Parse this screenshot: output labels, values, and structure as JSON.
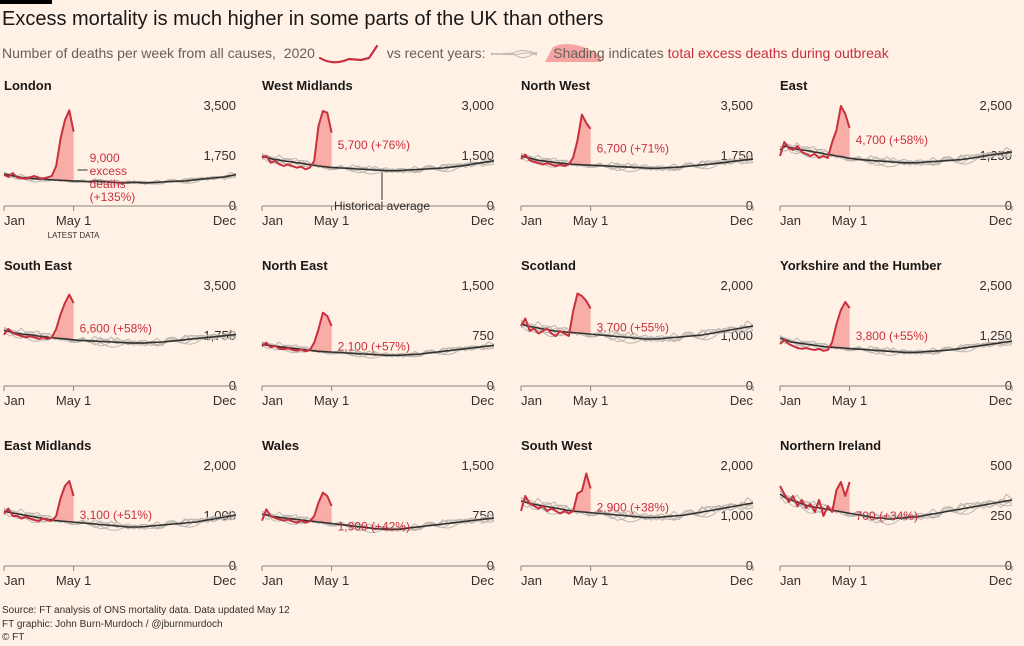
{
  "title": "Excess mortality is much higher in some parts of the UK than others",
  "subtitle": {
    "part1": "Number of deaths per week from all causes,",
    "year_label": "2020",
    "part2": "vs recent years:",
    "shading_label": "Shading",
    "part3": "indicates",
    "excess_label": "total excess deaths during outbreak"
  },
  "colors": {
    "background": "#fff1e5",
    "line_2020": "#c9303e",
    "shade": "#f7a5a0",
    "average": "#33302e",
    "history": "#bdb7b1",
    "text": "#33302e"
  },
  "annotations": {
    "latest_data": "LATEST DATA",
    "historical_average": "Historical average",
    "excess_deaths_line2": "excess",
    "excess_deaths_line3": "deaths"
  },
  "footer": {
    "source": "Source: FT analysis of ONS mortality data. Data updated May 12",
    "credit": "FT graphic: John Burn-Murdoch / @jburnmurdoch",
    "copyright": "© FT"
  },
  "chart_data": [
    {
      "type": "line",
      "title": "London",
      "x_ticks": [
        "Jan",
        "May 1",
        "Dec"
      ],
      "y_ticks": [
        "3,500",
        "1,750",
        "0"
      ],
      "ylim": [
        0,
        3500
      ],
      "label": "9,000",
      "label_pct": "(+135%)",
      "series_2020": [
        1100,
        1020,
        1150,
        1000,
        980,
        950,
        1000,
        1050,
        980,
        960,
        1000,
        1050,
        1400,
        2350,
        3000,
        3350,
        2600
      ],
      "average": [
        1120,
        1080,
        1040,
        1000,
        980,
        960,
        950,
        940,
        920,
        910,
        900,
        890,
        880,
        870,
        860,
        850,
        870,
        860,
        850,
        830,
        820,
        810,
        820,
        830,
        820,
        810,
        820,
        830,
        840,
        850,
        860,
        870,
        880,
        900,
        920,
        940,
        960,
        980,
        1000,
        1020,
        1060,
        1100
      ]
    },
    {
      "type": "line",
      "title": "West Midlands",
      "x_ticks": [
        "Jan",
        "May 1",
        "Dec"
      ],
      "y_ticks": [
        "3,000",
        "1,500",
        "0"
      ],
      "ylim": [
        0,
        3000
      ],
      "label": "5,700",
      "label_pct": "(+76%)",
      "series_2020": [
        1450,
        1500,
        1300,
        1350,
        1250,
        1200,
        1250,
        1200,
        1150,
        1180,
        1100,
        1150,
        1350,
        2400,
        2850,
        2800,
        2200
      ],
      "average": [
        1500,
        1450,
        1400,
        1380,
        1350,
        1330,
        1300,
        1280,
        1250,
        1230,
        1200,
        1180,
        1160,
        1150,
        1140,
        1130,
        1120,
        1110,
        1100,
        1090,
        1080,
        1070,
        1060,
        1060,
        1060,
        1070,
        1080,
        1090,
        1100,
        1110,
        1120,
        1130,
        1140,
        1160,
        1180,
        1200,
        1220,
        1250,
        1280,
        1300,
        1330,
        1360
      ]
    },
    {
      "type": "line",
      "title": "North West",
      "x_ticks": [
        "Jan",
        "May 1",
        "Dec"
      ],
      "y_ticks": [
        "3,500",
        "1,750",
        "0"
      ],
      "ylim": [
        0,
        3500
      ],
      "label": "6,700",
      "label_pct": "(+71%)",
      "series_2020": [
        1650,
        1800,
        1600,
        1550,
        1500,
        1450,
        1500,
        1450,
        1400,
        1450,
        1400,
        1450,
        1700,
        2300,
        3200,
        2900,
        2700
      ],
      "average": [
        1750,
        1700,
        1650,
        1600,
        1580,
        1550,
        1520,
        1500,
        1480,
        1460,
        1450,
        1440,
        1430,
        1420,
        1410,
        1400,
        1390,
        1380,
        1370,
        1360,
        1350,
        1340,
        1330,
        1320,
        1320,
        1330,
        1340,
        1350,
        1360,
        1380,
        1400,
        1420,
        1440,
        1460,
        1480,
        1500,
        1520,
        1550,
        1580,
        1600,
        1620,
        1650
      ]
    },
    {
      "type": "line",
      "title": "East",
      "x_ticks": [
        "Jan",
        "May 1",
        "Dec"
      ],
      "y_ticks": [
        "2,500",
        "1,250",
        "0"
      ],
      "ylim": [
        0,
        2500
      ],
      "label": "4,700",
      "label_pct": "(+58%)",
      "series_2020": [
        1250,
        1600,
        1450,
        1400,
        1500,
        1350,
        1300,
        1250,
        1300,
        1200,
        1250,
        1200,
        1600,
        1900,
        2500,
        2300,
        1950
      ],
      "average": [
        1400,
        1500,
        1450,
        1420,
        1400,
        1380,
        1350,
        1330,
        1300,
        1280,
        1250,
        1230,
        1200,
        1180,
        1160,
        1150,
        1140,
        1130,
        1120,
        1110,
        1100,
        1090,
        1080,
        1080,
        1080,
        1090,
        1100,
        1110,
        1120,
        1130,
        1140,
        1150,
        1160,
        1180,
        1200,
        1220,
        1250,
        1270,
        1290,
        1310,
        1330,
        1350
      ]
    },
    {
      "type": "line",
      "title": "South East",
      "x_ticks": [
        "Jan",
        "May 1",
        "Dec"
      ],
      "y_ticks": [
        "3,500",
        "1,750",
        "0"
      ],
      "ylim": [
        0,
        3500
      ],
      "label": "6,600",
      "label_pct": "(+58%)",
      "series_2020": [
        1800,
        2000,
        1850,
        1800,
        1750,
        1700,
        1750,
        1700,
        1650,
        1700,
        1650,
        1700,
        2000,
        2500,
        2900,
        3200,
        2900
      ],
      "average": [
        1950,
        1900,
        1850,
        1820,
        1800,
        1780,
        1750,
        1730,
        1700,
        1680,
        1660,
        1640,
        1620,
        1600,
        1590,
        1580,
        1570,
        1560,
        1550,
        1540,
        1530,
        1520,
        1510,
        1500,
        1500,
        1510,
        1520,
        1530,
        1540,
        1560,
        1580,
        1600,
        1620,
        1640,
        1660,
        1680,
        1700,
        1720,
        1740,
        1760,
        1780,
        1800
      ]
    },
    {
      "type": "line",
      "title": "North East",
      "x_ticks": [
        "Jan",
        "May 1",
        "Dec"
      ],
      "y_ticks": [
        "1,500",
        "750",
        "0"
      ],
      "ylim": [
        0,
        1500
      ],
      "label": "2,100",
      "label_pct": "(+57%)",
      "series_2020": [
        600,
        650,
        580,
        600,
        560,
        550,
        570,
        540,
        530,
        550,
        520,
        540,
        650,
        850,
        1100,
        1050,
        900
      ],
      "average": [
        630,
        610,
        600,
        590,
        580,
        570,
        560,
        550,
        540,
        530,
        520,
        515,
        510,
        505,
        500,
        495,
        490,
        485,
        480,
        475,
        470,
        465,
        460,
        460,
        460,
        465,
        470,
        475,
        480,
        490,
        500,
        510,
        520,
        530,
        540,
        550,
        560,
        570,
        580,
        590,
        600,
        610
      ]
    },
    {
      "type": "line",
      "title": "Scotland",
      "x_ticks": [
        "Jan",
        "May 1",
        "Dec"
      ],
      "y_ticks": [
        "2,000",
        "1,000",
        "0"
      ],
      "ylim": [
        0,
        2000
      ],
      "label": "3,700",
      "label_pct": "(+55%)",
      "series_2020": [
        1200,
        1350,
        1100,
        1150,
        1050,
        1100,
        1150,
        1050,
        1000,
        1100,
        1050,
        1000,
        1500,
        1850,
        1800,
        1700,
        1550
      ],
      "average": [
        1250,
        1200,
        1180,
        1160,
        1140,
        1120,
        1100,
        1090,
        1080,
        1070,
        1060,
        1050,
        1040,
        1030,
        1020,
        1010,
        1000,
        990,
        980,
        970,
        960,
        950,
        940,
        940,
        940,
        950,
        960,
        970,
        980,
        990,
        1000,
        1010,
        1020,
        1040,
        1060,
        1080,
        1100,
        1120,
        1140,
        1160,
        1180,
        1200
      ]
    },
    {
      "type": "line",
      "title": "Yorkshire and the Humber",
      "x_ticks": [
        "Jan",
        "May 1",
        "Dec"
      ],
      "y_ticks": [
        "2,500",
        "1,250",
        "0"
      ],
      "ylim": [
        0,
        2500
      ],
      "label": "3,800",
      "label_pct": "(+55%)",
      "series_2020": [
        1050,
        1150,
        1050,
        1000,
        950,
        930,
        950,
        920,
        900,
        930,
        880,
        900,
        1100,
        1550,
        1900,
        2100,
        1950
      ],
      "average": [
        1200,
        1150,
        1100,
        1080,
        1060,
        1040,
        1020,
        1000,
        980,
        970,
        960,
        950,
        940,
        930,
        920,
        910,
        900,
        890,
        880,
        870,
        860,
        850,
        840,
        840,
        840,
        850,
        860,
        870,
        880,
        890,
        900,
        920,
        940,
        960,
        980,
        1000,
        1020,
        1040,
        1060,
        1080,
        1100,
        1120
      ]
    },
    {
      "type": "line",
      "title": "East Midlands",
      "x_ticks": [
        "Jan",
        "May 1",
        "Dec"
      ],
      "y_ticks": [
        "2,000",
        "1,000",
        "0"
      ],
      "ylim": [
        0,
        2000
      ],
      "label": "3,100",
      "label_pct": "(+51%)",
      "series_2020": [
        1050,
        1150,
        1000,
        1000,
        950,
        980,
        950,
        920,
        900,
        950,
        920,
        900,
        1000,
        1350,
        1600,
        1700,
        1400
      ],
      "average": [
        1100,
        1070,
        1050,
        1030,
        1010,
        990,
        970,
        950,
        930,
        910,
        900,
        890,
        880,
        870,
        860,
        850,
        840,
        830,
        820,
        810,
        800,
        790,
        780,
        780,
        780,
        790,
        800,
        810,
        820,
        830,
        840,
        850,
        860,
        870,
        880,
        900,
        920,
        940,
        960,
        980,
        1000,
        1020
      ]
    },
    {
      "type": "line",
      "title": "Wales",
      "x_ticks": [
        "Jan",
        "May 1",
        "Dec"
      ],
      "y_ticks": [
        "1,500",
        "750",
        "0"
      ],
      "ylim": [
        0,
        1500
      ],
      "label": "1,900",
      "label_pct": "(+42%)",
      "series_2020": [
        680,
        850,
        750,
        720,
        700,
        680,
        700,
        670,
        650,
        680,
        650,
        670,
        750,
        950,
        1100,
        1050,
        900
      ],
      "average": [
        780,
        760,
        740,
        730,
        720,
        710,
        700,
        690,
        680,
        670,
        660,
        650,
        640,
        630,
        620,
        610,
        600,
        590,
        580,
        570,
        560,
        555,
        550,
        550,
        550,
        560,
        570,
        580,
        590,
        600,
        610,
        620,
        630,
        640,
        650,
        660,
        670,
        680,
        690,
        700,
        710,
        720
      ]
    },
    {
      "type": "line",
      "title": "South West",
      "x_ticks": [
        "Jan",
        "May 1",
        "Dec"
      ],
      "y_ticks": [
        "2,000",
        "1,000",
        "0"
      ],
      "ylim": [
        0,
        2000
      ],
      "label": "2,900",
      "label_pct": "(+38%)",
      "series_2020": [
        1100,
        1400,
        1250,
        1200,
        1150,
        1200,
        1100,
        1150,
        1100,
        1050,
        1100,
        1050,
        1100,
        1450,
        1500,
        1850,
        1550
      ],
      "average": [
        1300,
        1270,
        1240,
        1220,
        1200,
        1180,
        1160,
        1140,
        1120,
        1100,
        1090,
        1080,
        1070,
        1060,
        1050,
        1040,
        1030,
        1020,
        1010,
        1000,
        990,
        980,
        970,
        970,
        970,
        980,
        990,
        1000,
        1010,
        1020,
        1040,
        1060,
        1080,
        1100,
        1120,
        1140,
        1160,
        1180,
        1200,
        1220,
        1240,
        1260
      ]
    },
    {
      "type": "line",
      "title": "Northern Ireland",
      "x_ticks": [
        "Jan",
        "May 1",
        "Dec"
      ],
      "y_ticks": [
        "500",
        "250",
        "0"
      ],
      "ylim": [
        0,
        500
      ],
      "label": "700",
      "label_pct": "(+34%)",
      "series_2020": [
        400,
        360,
        320,
        350,
        300,
        330,
        290,
        310,
        270,
        330,
        250,
        300,
        270,
        380,
        420,
        350,
        420
      ],
      "average": [
        360,
        340,
        330,
        320,
        310,
        300,
        295,
        290,
        285,
        280,
        275,
        270,
        265,
        260,
        255,
        250,
        245,
        240,
        240,
        235,
        235,
        240,
        240,
        245,
        245,
        250,
        255,
        260,
        265,
        270,
        275,
        280,
        285,
        290,
        295,
        300,
        305,
        310,
        315,
        320,
        325,
        330
      ]
    }
  ]
}
